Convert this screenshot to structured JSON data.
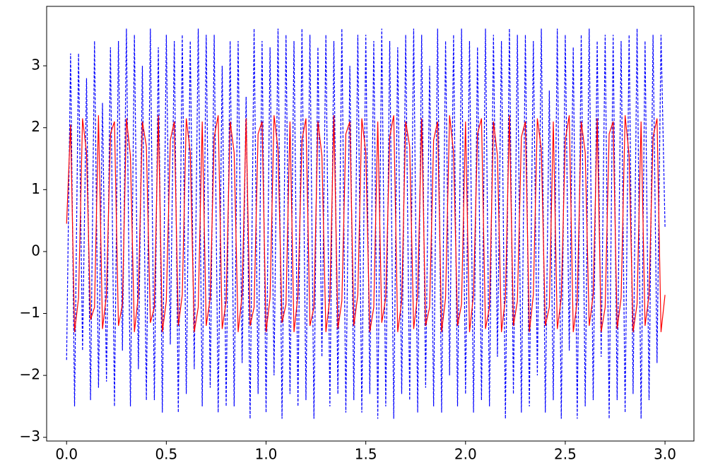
{
  "chart_data": {
    "type": "line",
    "x": [
      0,
      0.02,
      0.04,
      0.06,
      0.08,
      0.1,
      0.12,
      0.14,
      0.16,
      0.18,
      0.2,
      0.22,
      0.24,
      0.26,
      0.28,
      0.3,
      0.32,
      0.34,
      0.36,
      0.38,
      0.4,
      0.42,
      0.44,
      0.46,
      0.48,
      0.5,
      0.52,
      0.54,
      0.56,
      0.58,
      0.6,
      0.62,
      0.64,
      0.66,
      0.68,
      0.7,
      0.72,
      0.74,
      0.76,
      0.78,
      0.8,
      0.82,
      0.84,
      0.86,
      0.88,
      0.9,
      0.92,
      0.94,
      0.96,
      0.98,
      1,
      1.02,
      1.04,
      1.06,
      1.08,
      1.1,
      1.12,
      1.14,
      1.16,
      1.18,
      1.2,
      1.22,
      1.24,
      1.26,
      1.28,
      1.3,
      1.32,
      1.34,
      1.36,
      1.38,
      1.4,
      1.42,
      1.44,
      1.46,
      1.48,
      1.5,
      1.52,
      1.54,
      1.56,
      1.58,
      1.6,
      1.62,
      1.64,
      1.66,
      1.68,
      1.7,
      1.72,
      1.74,
      1.76,
      1.78,
      1.8,
      1.82,
      1.84,
      1.86,
      1.88,
      1.9,
      1.92,
      1.94,
      1.96,
      1.98,
      2,
      2.02,
      2.04,
      2.06,
      2.08,
      2.1,
      2.12,
      2.14,
      2.16,
      2.18,
      2.2,
      2.22,
      2.24,
      2.26,
      2.28,
      2.3,
      2.32,
      2.34,
      2.36,
      2.38,
      2.4,
      2.42,
      2.44,
      2.46,
      2.48,
      2.5,
      2.52,
      2.54,
      2.56,
      2.58,
      2.6,
      2.62,
      2.64,
      2.66,
      2.68,
      2.7,
      2.72,
      2.74,
      2.76,
      2.78,
      2.8,
      2.82,
      2.84,
      2.86,
      2.88,
      2.9,
      2.92,
      2.94,
      2.96,
      2.98,
      3
    ],
    "series": [
      {
        "color": "#0000ff",
        "linestyle": "dashed",
        "values": [
          -1.75,
          3.2,
          -2.5,
          3.2,
          -1.6,
          2.8,
          -2.4,
          3.4,
          -2.2,
          2.4,
          -2.1,
          3.3,
          -2.5,
          3.4,
          -1.6,
          3.6,
          -2.5,
          3.5,
          -1.9,
          3.0,
          -2.4,
          3.6,
          -2.4,
          3.3,
          -2.6,
          3.5,
          -1.5,
          3.4,
          -2.6,
          3.5,
          -2.3,
          3.4,
          -1.9,
          3.6,
          -2.5,
          3.5,
          -2.2,
          3.5,
          -2.6,
          3.0,
          -2.5,
          3.4,
          -2.5,
          3.4,
          -1.8,
          2.5,
          -2.7,
          3.6,
          -2.3,
          3.4,
          -2.6,
          3.3,
          -2.0,
          3.6,
          -2.7,
          3.5,
          -2.3,
          3.4,
          -2.5,
          3.6,
          -2.4,
          3.5,
          -2.7,
          3.3,
          -1.7,
          3.5,
          -2.5,
          3.4,
          -2.3,
          3.6,
          -2.6,
          3.0,
          -2.4,
          3.5,
          -2.6,
          3.5,
          -2.3,
          3.4,
          -2.7,
          3.6,
          -2.5,
          3.4,
          -2.7,
          3.3,
          -2.3,
          3.5,
          -2.4,
          3.6,
          -2.6,
          3.5,
          -2.2,
          3.0,
          -2.5,
          3.6,
          -2.6,
          3.4,
          -2.0,
          3.5,
          -2.5,
          3.6,
          -2.3,
          3.4,
          -2.6,
          3.3,
          -2.4,
          3.6,
          -2.5,
          3.5,
          -1.7,
          3.4,
          -2.7,
          3.6,
          -2.3,
          3.5,
          -2.6,
          3.5,
          -2.5,
          3.4,
          -2.0,
          3.6,
          -2.6,
          2.6,
          -2.4,
          3.6,
          -2.7,
          3.5,
          -1.6,
          3.3,
          -2.7,
          3.5,
          -2.5,
          3.6,
          -2.4,
          3.4,
          -1.7,
          3.5,
          -2.7,
          3.5,
          -2.4,
          3.4,
          -2.6,
          3.5,
          -2.3,
          3.6,
          -2.7,
          3.4,
          -2.4,
          3.5,
          -1.8,
          3.5,
          0.4
        ]
      },
      {
        "color": "#ff0000",
        "linestyle": "solid",
        "values": [
          0.45,
          2.05,
          -1.3,
          -0.75,
          2.15,
          1.6,
          -1.1,
          -0.9,
          2.2,
          -1.25,
          -0.7,
          1.9,
          2.1,
          -1.2,
          -0.85,
          2.15,
          1.55,
          -1.3,
          -0.7,
          2.1,
          1.7,
          -1.15,
          -0.9,
          2.2,
          -1.3,
          -0.8,
          1.8,
          2.1,
          -1.2,
          -0.7,
          2.15,
          1.6,
          -1.3,
          -0.9,
          2.1,
          -1.2,
          -0.75,
          1.85,
          2.2,
          -1.25,
          -0.8,
          2.1,
          1.6,
          -1.3,
          -0.7,
          2.15,
          -1.2,
          -0.9,
          1.9,
          2.1,
          -1.3,
          -0.75,
          2.2,
          1.65,
          -1.15,
          -0.85,
          2.1,
          -1.3,
          -0.7,
          1.8,
          2.15,
          -1.2,
          -0.9,
          2.1,
          1.55,
          -1.3,
          -0.75,
          2.2,
          -1.25,
          -0.8,
          1.9,
          2.1,
          -1.2,
          -0.7,
          2.15,
          1.6,
          -1.3,
          -0.9,
          2.1,
          -1.15,
          -0.75,
          1.85,
          2.2,
          -1.3,
          -0.8,
          2.1,
          1.7,
          -1.25,
          -0.7,
          2.15,
          -1.2,
          -0.9,
          1.8,
          2.1,
          -1.3,
          -0.75,
          2.2,
          1.6,
          -1.2,
          -0.85,
          2.1,
          -1.3,
          -0.7,
          1.9,
          2.15,
          -1.25,
          -0.9,
          2.1,
          1.55,
          -1.3,
          -0.75,
          2.2,
          -1.2,
          -0.8,
          1.85,
          2.1,
          -1.3,
          -0.7,
          2.15,
          1.65,
          -1.2,
          -0.9,
          2.1,
          -1.25,
          -0.75,
          1.8,
          2.2,
          -1.3,
          -0.8,
          2.1,
          1.6,
          -1.2,
          -0.7,
          2.15,
          -1.3,
          -0.9,
          1.9,
          2.1,
          -1.25,
          -0.75,
          2.2,
          1.55,
          -1.3,
          -0.85,
          2.1,
          -1.2,
          -0.7,
          1.85,
          2.15,
          -1.3,
          -0.7
        ]
      }
    ],
    "xlim": [
      -0.1,
      3.145
    ],
    "ylim": [
      -3.06,
      3.96
    ],
    "xticks": [
      {
        "value": 0,
        "label": "0.0"
      },
      {
        "value": 0.5,
        "label": "0.5"
      },
      {
        "value": 1,
        "label": "1.0"
      },
      {
        "value": 1.5,
        "label": "1.5"
      },
      {
        "value": 2,
        "label": "2.0"
      },
      {
        "value": 2.5,
        "label": "2.5"
      },
      {
        "value": 3,
        "label": "3.0"
      }
    ],
    "yticks": [
      {
        "value": -3,
        "label": "−3"
      },
      {
        "value": -2,
        "label": "−2"
      },
      {
        "value": -1,
        "label": "−1"
      },
      0,
      1,
      2,
      3
    ],
    "grid": false
  }
}
